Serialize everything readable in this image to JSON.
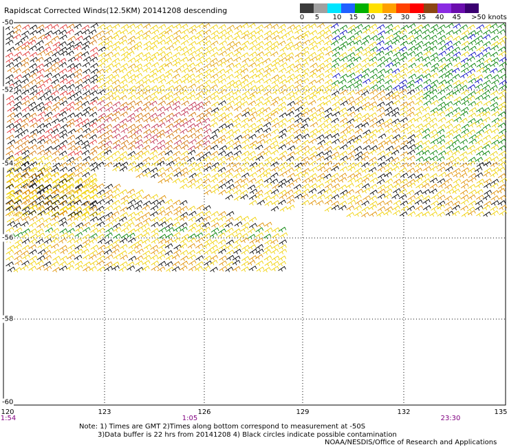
{
  "title": "Rapidscat Corrected Winds(12.5KM) 20141208 descending",
  "colorbar": {
    "ticks": [
      "0",
      "5",
      "10",
      "15",
      "20",
      "25",
      "30",
      "35",
      "40",
      "45",
      ">50 knots"
    ],
    "colors": [
      "#3a3a3a",
      "#a0a0a0",
      "#00e5ff",
      "#2060ff",
      "#00b000",
      "#ffe000",
      "#ffa000",
      "#ff4000",
      "#ff0000",
      "#8b4513",
      "#8a2be2",
      "#6a0dad",
      "#3a0070"
    ]
  },
  "map": {
    "lat_labels": [
      "-50",
      "-52",
      "-54",
      "-56",
      "-58",
      "-60"
    ],
    "lon_labels": [
      "120",
      "123",
      "126",
      "129",
      "132",
      "135"
    ],
    "time_labels": [
      "1:54",
      "1:05",
      "23:30"
    ]
  },
  "notes": {
    "line1": "Note: 1) Times are GMT 2)Times along bottom correspond to measurement at -50S",
    "line2": "3)Data buffer is 22 hrs from 20141208 4) Black circles indicate possible contamination",
    "line3": "NOAA/NESDIS/Office of Research and Applications"
  }
}
